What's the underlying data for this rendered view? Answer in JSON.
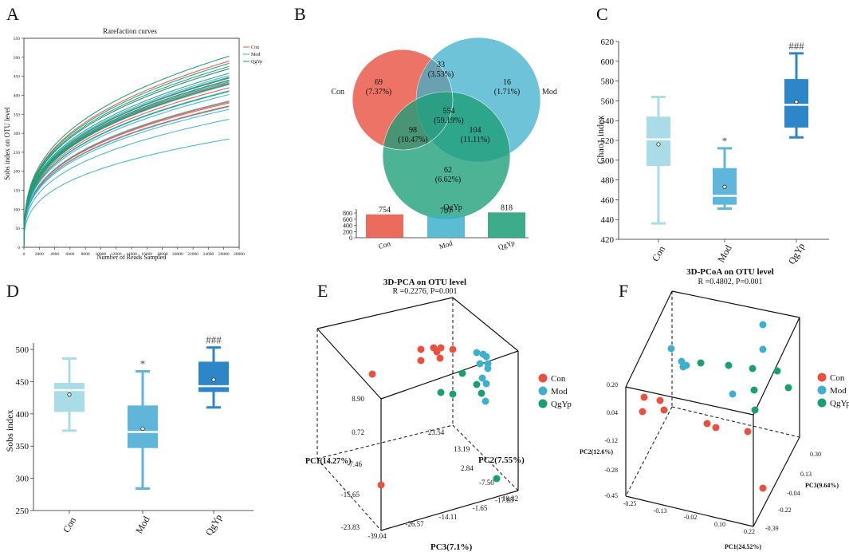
{
  "colors": {
    "con": "#E8513F",
    "mod": "#3EB0CC",
    "qgyp": "#1B9E77",
    "box_con": "#A9DCE6",
    "box_mod": "#5FB5DA",
    "box_qgyp": "#2C86C8"
  },
  "chart_data": [
    {
      "panel": "A",
      "type": "line",
      "title": "Rarefaction curves",
      "xlabel": "Number of Reads Sampled",
      "ylabel": "Sobs index on OTU level",
      "xlim": [
        0,
        28000
      ],
      "ylim": [
        0,
        550
      ],
      "xticks": [
        "0",
        "2000",
        "4000",
        "6000",
        "8000",
        "10000",
        "12000",
        "14000",
        "16000",
        "18000",
        "20000",
        "22000",
        "24000",
        "26000",
        "28000"
      ],
      "yticks": [
        "0",
        "50",
        "100",
        "150",
        "200",
        "250",
        "300",
        "350",
        "400",
        "450",
        "500",
        "550"
      ],
      "legend": [
        "Con",
        "Mod",
        "QgYp"
      ],
      "series": [
        {
          "name": "Con",
          "finals": [
            490,
            470,
            445,
            440,
            432,
            420,
            383,
            380,
            372,
            371
          ]
        },
        {
          "name": "Mod",
          "finals": [
            452,
            448,
            438,
            428,
            412,
            402,
            385,
            370,
            363,
            337,
            285
          ]
        },
        {
          "name": "QgYp",
          "finals": [
            503,
            484,
            476,
            470,
            458,
            446,
            440,
            435,
            430,
            410
          ]
        }
      ]
    },
    {
      "panel": "B",
      "type": "venn",
      "sets": [
        {
          "name": "Con",
          "label": "Con"
        },
        {
          "name": "Mod",
          "label": "Mod"
        },
        {
          "name": "QgYp",
          "label": "QgYp"
        }
      ],
      "regions": [
        {
          "sets": "Con",
          "count": "69",
          "percent": "(7.37%)"
        },
        {
          "sets": "Con&Mod",
          "count": "33",
          "percent": "(3.53%)"
        },
        {
          "sets": "Mod",
          "count": "16",
          "percent": "(1.71%)"
        },
        {
          "sets": "All",
          "count": "554",
          "percent": "(59.19%)"
        },
        {
          "sets": "Con&QgYp",
          "count": "98",
          "percent": "(10.47%)"
        },
        {
          "sets": "Mod&QgYp",
          "count": "104",
          "percent": "(11.11%)"
        },
        {
          "sets": "QgYp",
          "count": "62",
          "percent": "(6.62%)"
        }
      ],
      "bar": {
        "categories": [
          "Con",
          "Mod",
          "QgYp"
        ],
        "values": [
          754,
          707,
          818
        ],
        "yticks": [
          "0",
          "200",
          "400",
          "600",
          "800"
        ],
        "ylim": [
          0,
          800
        ]
      }
    },
    {
      "panel": "C",
      "type": "box",
      "ylabel": "Chao1 index",
      "ylim": [
        420,
        620
      ],
      "yticks": [
        "420",
        "440",
        "460",
        "480",
        "500",
        "520",
        "540",
        "560",
        "580",
        "600",
        "620"
      ],
      "categories": [
        "Con",
        "Mod",
        "QgYp"
      ],
      "boxes": [
        {
          "min": 436,
          "q1": 494,
          "median": 521,
          "q3": 544,
          "max": 564,
          "mean": 516,
          "annotation": ""
        },
        {
          "min": 451,
          "q1": 455,
          "median": 464,
          "q3": 492,
          "max": 512,
          "mean": 473,
          "annotation": "*"
        },
        {
          "min": 523,
          "q1": 533,
          "median": 556,
          "q3": 582,
          "max": 608,
          "mean": 559,
          "annotation": "###"
        }
      ]
    },
    {
      "panel": "D",
      "type": "box",
      "ylabel": "Sobs index",
      "ylim": [
        250,
        510
      ],
      "yticks": [
        "250",
        "300",
        "350",
        "400",
        "450",
        "500"
      ],
      "categories": [
        "Con",
        "Mod",
        "QgYp"
      ],
      "boxes": [
        {
          "min": 374,
          "q1": 403,
          "median": 437,
          "q3": 448,
          "max": 486,
          "mean": 430,
          "annotation": ""
        },
        {
          "min": 284,
          "q1": 347,
          "median": 372,
          "q3": 413,
          "max": 466,
          "mean": 377,
          "annotation": "*"
        },
        {
          "min": 410,
          "q1": 434,
          "median": 443,
          "q3": 481,
          "max": 503,
          "mean": 453,
          "annotation": "###"
        }
      ]
    },
    {
      "panel": "E",
      "type": "scatter3d",
      "title": "3D-PCA on OTU level",
      "subtitle": "R =0.2276, P=0.001",
      "axis_labels": {
        "pc1": "PC1(14.27%)",
        "pc2": "PC2(7.55%)",
        "pc3": "PC3(7.1%)"
      },
      "pc1_ticks": [
        "8.90",
        "0.72",
        "-7.46",
        "-15.65",
        "-23.83"
      ],
      "pc2_ticks": [
        "23.54",
        "13.19",
        "2.84",
        "-7.50",
        "-17.85"
      ],
      "pc3_ticks": [
        "-39.04",
        "-26.57",
        "-14.11",
        "-1.65",
        "10.82"
      ],
      "legend": [
        "Con",
        "Mod",
        "QgYp"
      ],
      "groups": [
        {
          "name": "Con",
          "projected_points": [
            [
              528,
              438
            ],
            [
              544,
              436
            ],
            [
              553,
              436
            ],
            [
              548,
              441
            ],
            [
              568,
              438
            ],
            [
              528,
              452
            ],
            [
              552,
              449
            ],
            [
              467,
              469
            ],
            [
              478,
              608
            ]
          ]
        },
        {
          "name": "Mod",
          "projected_points": [
            [
              598,
              442
            ],
            [
              606,
              444
            ],
            [
              610,
              447
            ],
            [
              602,
              456
            ],
            [
              612,
              456
            ],
            [
              612,
              462
            ],
            [
              605,
              474
            ],
            [
              610,
              481
            ],
            [
              609,
              503
            ]
          ]
        },
        {
          "name": "QgYp",
          "projected_points": [
            [
              580,
              468
            ],
            [
              553,
              492
            ],
            [
              568,
              494
            ],
            [
              598,
              482
            ],
            [
              604,
              493
            ],
            [
              623,
              600
            ]
          ]
        }
      ]
    },
    {
      "panel": "F",
      "type": "scatter3d",
      "title": "3D-PCoA on OTU level",
      "subtitle": "R =0.4802, P=0.001",
      "axis_labels": {
        "pc1": "PC1(24.52%)",
        "pc2": "PC2(12.6%)",
        "pc3": "PC3(9.64%)"
      },
      "pc1_ticks": [
        "-0.25",
        "-0.13",
        "-0.02",
        "0.10",
        "0.22"
      ],
      "pc2_ticks": [
        "0.20",
        "0.04",
        "-0.12",
        "-0.28",
        "-0.45"
      ],
      "pc3_ticks": [
        "-0.39",
        "-0.22",
        "-0.04",
        "0.13",
        "0.30"
      ],
      "legend": [
        "Con",
        "Mod",
        "QgYp"
      ],
      "groups": [
        {
          "name": "Con",
          "projected_points": [
            [
              808,
              498
            ],
            [
              828,
              502
            ],
            [
              806,
              516
            ],
            [
              833,
              514
            ],
            [
              887,
              531
            ],
            [
              898,
              536
            ],
            [
              938,
              541
            ],
            [
              957,
              612
            ]
          ]
        },
        {
          "name": "Mod",
          "projected_points": [
            [
              842,
              437
            ],
            [
              855,
              453
            ],
            [
              861,
              458
            ],
            [
              857,
              460
            ],
            [
              957,
              407
            ],
            [
              957,
              438
            ],
            [
              919,
              494
            ]
          ]
        },
        {
          "name": "QgYp",
          "projected_points": [
            [
              879,
              455
            ],
            [
              914,
              458
            ],
            [
              944,
              462
            ],
            [
              975,
              465
            ],
            [
              946,
              489
            ],
            [
              989,
              486
            ],
            [
              947,
              514
            ]
          ]
        }
      ]
    }
  ]
}
